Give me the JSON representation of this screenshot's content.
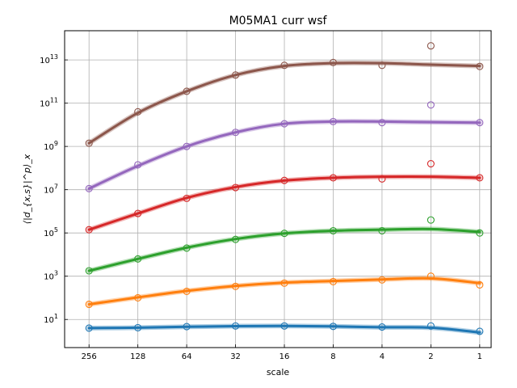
{
  "chart_data": {
    "type": "line",
    "title": "M05MA1 curr wsf",
    "xlabel": "scale",
    "ylabel": "⟨|d_{x,s}|^p⟩_x",
    "x_scale": "log2-reversed",
    "y_scale": "log10",
    "grid": true,
    "xlim": [
      362,
      0.85
    ],
    "ylim_log10": [
      -0.3,
      14.35
    ],
    "x": [
      256,
      128,
      64,
      32,
      16,
      8,
      4,
      2,
      1
    ],
    "x_tick_labels": [
      "256",
      "128",
      "64",
      "32",
      "16",
      "8",
      "4",
      "2",
      "1"
    ],
    "y_ticks_log10": [
      1,
      3,
      5,
      7,
      9,
      11,
      13
    ],
    "series": [
      {
        "color": "#1f77b4",
        "points_log10": [
          0.6,
          0.62,
          0.67,
          0.7,
          0.7,
          0.68,
          0.65,
          0.7,
          0.45
        ],
        "curve_log10": [
          0.6,
          0.62,
          0.66,
          0.69,
          0.7,
          0.68,
          0.64,
          0.62,
          0.4
        ]
      },
      {
        "color": "#ff7f0e",
        "points_log10": [
          1.7,
          2.0,
          2.3,
          2.53,
          2.68,
          2.75,
          2.83,
          3.0,
          2.6
        ],
        "curve_log10": [
          1.7,
          2.02,
          2.32,
          2.55,
          2.7,
          2.78,
          2.85,
          2.9,
          2.68
        ]
      },
      {
        "color": "#2ca02c",
        "points_log10": [
          3.25,
          3.8,
          4.3,
          4.7,
          4.98,
          5.1,
          5.1,
          5.6,
          5.0
        ],
        "curve_log10": [
          3.25,
          3.8,
          4.32,
          4.72,
          4.98,
          5.1,
          5.15,
          5.18,
          5.05
        ]
      },
      {
        "color": "#d62728",
        "points_log10": [
          5.15,
          5.9,
          6.6,
          7.1,
          7.43,
          7.55,
          7.5,
          8.2,
          7.55
        ],
        "curve_log10": [
          5.15,
          5.9,
          6.62,
          7.12,
          7.42,
          7.55,
          7.6,
          7.6,
          7.55
        ]
      },
      {
        "color": "#9467bd",
        "points_log10": [
          7.05,
          8.15,
          9.0,
          9.65,
          10.05,
          10.15,
          10.1,
          10.92,
          10.1
        ],
        "curve_log10": [
          7.05,
          8.1,
          9.0,
          9.65,
          10.05,
          10.15,
          10.15,
          10.12,
          10.1
        ]
      },
      {
        "color": "#8c564b",
        "points_log10": [
          9.15,
          10.6,
          11.55,
          12.3,
          12.75,
          12.88,
          12.75,
          13.65,
          12.7
        ],
        "curve_log10": [
          9.15,
          10.55,
          11.55,
          12.3,
          12.72,
          12.85,
          12.85,
          12.78,
          12.72
        ]
      }
    ]
  }
}
